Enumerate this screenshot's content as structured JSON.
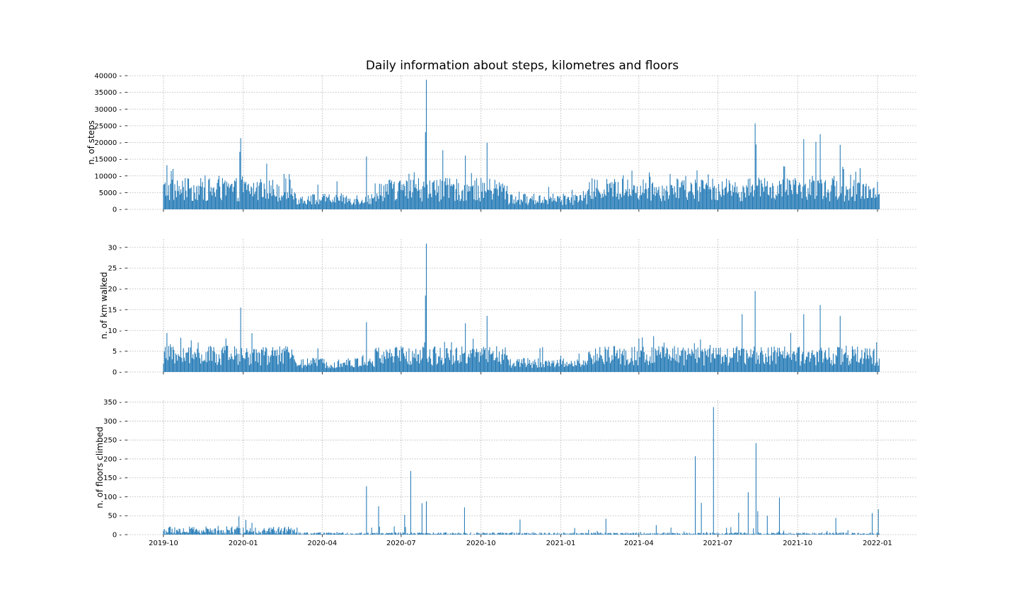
{
  "chart_data": {
    "title": "Daily information about steps, kilometres and floors",
    "type": "bar",
    "bar_color": "#1f77b4",
    "grid": true,
    "date_range": [
      "2019-10-01",
      "2022-01-03"
    ],
    "x_ticks": [
      "2019-10",
      "2020-01",
      "2020-04",
      "2020-07",
      "2020-10",
      "2021-01",
      "2021-04",
      "2021-07",
      "2021-10",
      "2022-01"
    ],
    "panels": [
      {
        "name": "steps",
        "ylabel": "n. of steps",
        "ylim": [
          0,
          40000
        ],
        "yticks": [
          0,
          5000,
          10000,
          15000,
          20000,
          25000,
          30000,
          35000,
          40000
        ],
        "notable_values": [
          {
            "date": "2019-10-05",
            "value": 13200
          },
          {
            "date": "2019-10-12",
            "value": 12100
          },
          {
            "date": "2019-12-29",
            "value": 21300
          },
          {
            "date": "2019-12-28",
            "value": 17200
          },
          {
            "date": "2020-02-17",
            "value": 10600
          },
          {
            "date": "2020-05-22",
            "value": 15800
          },
          {
            "date": "2020-07-29",
            "value": 23100
          },
          {
            "date": "2020-07-30",
            "value": 38800
          },
          {
            "date": "2020-08-18",
            "value": 17700
          },
          {
            "date": "2020-09-13",
            "value": 16100
          },
          {
            "date": "2020-10-08",
            "value": 19900
          },
          {
            "date": "2021-08-13",
            "value": 25700
          },
          {
            "date": "2021-08-14",
            "value": 19400
          },
          {
            "date": "2021-10-08",
            "value": 21000
          },
          {
            "date": "2021-10-27",
            "value": 22500
          },
          {
            "date": "2021-10-22",
            "value": 20200
          },
          {
            "date": "2021-11-19",
            "value": 19300
          }
        ]
      },
      {
        "name": "kilometres",
        "ylabel": "n. of km walked",
        "ylim": [
          0,
          32
        ],
        "yticks": [
          0,
          5,
          10,
          15,
          20,
          25,
          30
        ],
        "notable_values": [
          {
            "date": "2019-10-05",
            "value": 9.4
          },
          {
            "date": "2019-12-29",
            "value": 15.5
          },
          {
            "date": "2020-05-22",
            "value": 12.0
          },
          {
            "date": "2020-07-29",
            "value": 18.4
          },
          {
            "date": "2020-07-30",
            "value": 30.9
          },
          {
            "date": "2020-09-13",
            "value": 11.7
          },
          {
            "date": "2020-10-08",
            "value": 13.5
          },
          {
            "date": "2021-07-29",
            "value": 13.9
          },
          {
            "date": "2021-08-13",
            "value": 19.5
          },
          {
            "date": "2021-10-08",
            "value": 13.9
          },
          {
            "date": "2021-10-27",
            "value": 16.1
          },
          {
            "date": "2021-11-19",
            "value": 13.5
          }
        ]
      },
      {
        "name": "floors",
        "ylabel": "n. of floors climbed",
        "ylim": [
          0,
          355
        ],
        "yticks": [
          0,
          50,
          100,
          150,
          200,
          250,
          300,
          350
        ],
        "notable_values": [
          {
            "date": "2019-12-27",
            "value": 48
          },
          {
            "date": "2020-05-22",
            "value": 128
          },
          {
            "date": "2020-06-05",
            "value": 75
          },
          {
            "date": "2020-07-05",
            "value": 52
          },
          {
            "date": "2020-07-12",
            "value": 168
          },
          {
            "date": "2020-07-25",
            "value": 83
          },
          {
            "date": "2020-07-30",
            "value": 88
          },
          {
            "date": "2020-09-12",
            "value": 72
          },
          {
            "date": "2020-11-15",
            "value": 40
          },
          {
            "date": "2021-02-22",
            "value": 42
          },
          {
            "date": "2021-06-05",
            "value": 207
          },
          {
            "date": "2021-06-12",
            "value": 84
          },
          {
            "date": "2021-06-26",
            "value": 337
          },
          {
            "date": "2021-07-25",
            "value": 58
          },
          {
            "date": "2021-08-05",
            "value": 112
          },
          {
            "date": "2021-08-14",
            "value": 242
          },
          {
            "date": "2021-08-16",
            "value": 62
          },
          {
            "date": "2021-08-27",
            "value": 50
          },
          {
            "date": "2021-09-10",
            "value": 98
          },
          {
            "date": "2021-11-14",
            "value": 44
          },
          {
            "date": "2021-12-26",
            "value": 57
          },
          {
            "date": "2022-01-02",
            "value": 67
          }
        ]
      }
    ]
  }
}
